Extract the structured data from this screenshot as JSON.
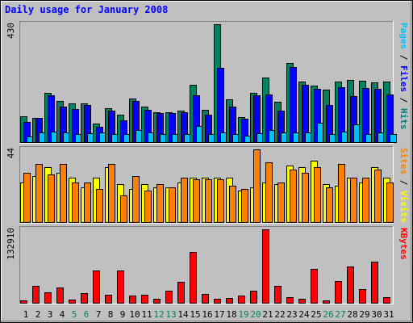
{
  "chart_data": {
    "title": "Daily usage for January 2008",
    "type": "bar",
    "days": [
      "1",
      "2",
      "3",
      "4",
      "5",
      "6",
      "7",
      "8",
      "9",
      "10",
      "11",
      "12",
      "13",
      "14",
      "15",
      "16",
      "17",
      "18",
      "19",
      "20",
      "21",
      "22",
      "23",
      "24",
      "25",
      "26",
      "27",
      "28",
      "29",
      "30",
      "31"
    ],
    "weekend_days": [
      "5",
      "6",
      "12",
      "13",
      "19",
      "20",
      "26",
      "27"
    ],
    "panels": [
      {
        "id": "hits-panel",
        "max_label": "430",
        "ymax": 430,
        "ylabel_parts": [
          {
            "text": "Pages",
            "color": "#00c0ff"
          },
          {
            "text": " / ",
            "color": "#000000"
          },
          {
            "text": "Files",
            "color": "#0000ff"
          },
          {
            "text": " / ",
            "color": "#000000"
          },
          {
            "text": "Hits",
            "color": "#008080"
          }
        ],
        "series": [
          {
            "name": "Hits",
            "color": "#008060",
            "values": [
              95,
              88,
              180,
              150,
              140,
              140,
              68,
              125,
              100,
              160,
              130,
              110,
              110,
              115,
              210,
              118,
              430,
              155,
              90,
              180,
              235,
              148,
              290,
              220,
              205,
              190,
              220,
              228,
              225,
              218,
              220
            ]
          },
          {
            "name": "Files",
            "color": "#0000ff",
            "values": [
              75,
              88,
              170,
              130,
              120,
              135,
              55,
              115,
              80,
              150,
              118,
              105,
              105,
              110,
              170,
              100,
              270,
              130,
              85,
              172,
              173,
              115,
              275,
              208,
              195,
              135,
              200,
              168,
              198,
              195,
              175
            ]
          },
          {
            "name": "Pages",
            "color": "#00c0ff",
            "values": [
              22,
              35,
              38,
              35,
              30,
              33,
              34,
              30,
              30,
              45,
              35,
              28,
              30,
              30,
              58,
              30,
              35,
              28,
              25,
              33,
              45,
              35,
              35,
              35,
              70,
              30,
              38,
              65,
              30,
              35,
              30
            ]
          }
        ]
      },
      {
        "id": "visits-panel",
        "max_label": "44",
        "ymax": 44,
        "ylabel_parts": [
          {
            "text": "Sites",
            "color": "#ff8000"
          },
          {
            "text": " / ",
            "color": "#000000"
          },
          {
            "text": "Visits",
            "color": "#ffff00"
          }
        ],
        "series": [
          {
            "name": "Visits",
            "color": "#ffff00",
            "values": [
              24,
              28,
              33,
              30,
              27,
              21,
              27,
              33,
              23,
              20,
              23,
              21,
              21,
              24,
              27,
              27,
              27,
              27,
              19,
              21,
              24,
              23,
              34,
              33,
              37,
              23,
              22,
              27,
              24,
              33,
              27
            ]
          },
          {
            "name": "Sites",
            "color": "#ff8000",
            "values": [
              30,
              35,
              29,
              35,
              24,
              24,
              20,
              35,
              16,
              28,
              19,
              23,
              21,
              27,
              26,
              26,
              26,
              22,
              20,
              44,
              36,
              24,
              32,
              30,
              33,
              21,
              35,
              27,
              27,
              32,
              24
            ]
          }
        ]
      },
      {
        "id": "kbytes-panel",
        "max_label": "132910",
        "ymax": 132910,
        "ylabel_parts": [
          {
            "text": "KBytes",
            "color": "#ff0000"
          }
        ],
        "series": [
          {
            "name": "KBytes",
            "color": "#ff0000",
            "values": [
              4000,
              31000,
              19000,
              28000,
              6000,
              18000,
              58000,
              15000,
              58000,
              13000,
              14000,
              8000,
              22000,
              38000,
              92000,
              16000,
              7500,
              8500,
              13000,
              22000,
              132910,
              30000,
              10000,
              8000,
              62000,
              5000,
              40000,
              66000,
              25000,
              74000,
              10000
            ]
          }
        ]
      }
    ]
  }
}
